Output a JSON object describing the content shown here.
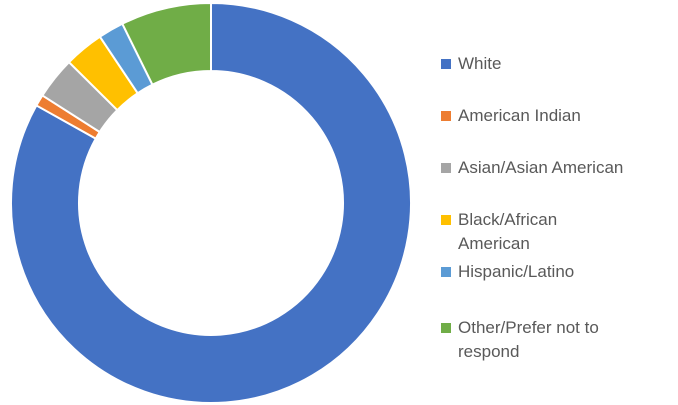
{
  "chart_data": {
    "type": "pie",
    "variant": "donut",
    "title": "",
    "value_unit": "percent (estimated from slice angles)",
    "start_angle_deg": 0,
    "direction": "clockwise",
    "legend": "right",
    "categories": [
      "White",
      "American Indian",
      "Asian/Asian American",
      "Black/African American",
      "Hispanic/Latino",
      "Other/Prefer not to respond"
    ],
    "values": [
      80.7,
      0.9,
      3.3,
      3.1,
      2.0,
      7.1
    ],
    "colors": [
      "#4472C4",
      "#ED7D31",
      "#A5A5A5",
      "#FFC000",
      "#5B9BD5",
      "#70AD47"
    ],
    "legend_labels": [
      [
        "White"
      ],
      [
        "American Indian"
      ],
      [
        "Asian/Asian American"
      ],
      [
        "Black/African",
        "American"
      ],
      [
        "Hispanic/Latino"
      ],
      [
        "Other/Prefer not to",
        "respond"
      ]
    ]
  }
}
